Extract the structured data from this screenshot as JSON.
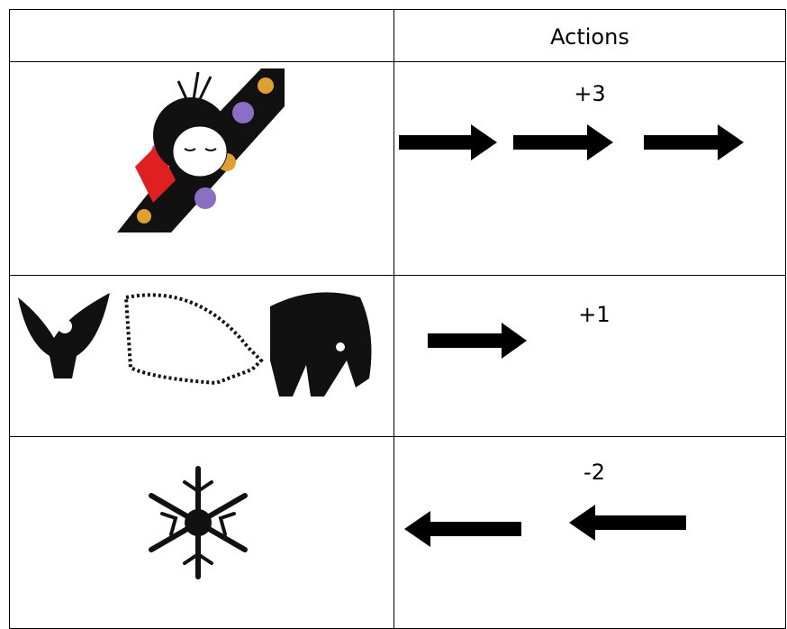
{
  "table": {
    "header": "Actions",
    "rows": [
      {
        "action": "+3"
      },
      {
        "action": "+1"
      },
      {
        "action": "-2"
      }
    ]
  }
}
